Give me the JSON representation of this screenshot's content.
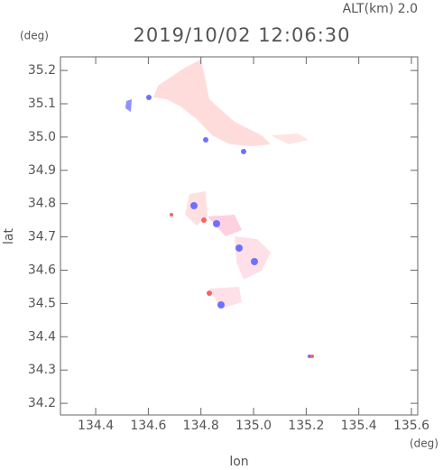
{
  "chart_data": {
    "type": "scatter",
    "title": "2019/10/02 12:06:30",
    "subtitle": "ALT(km)  2.0",
    "x_label": "lon",
    "x_unit": "(deg)",
    "y_label": "lat",
    "y_unit": "(deg)",
    "xlim": [
      134.266,
      135.624
    ],
    "ylim": [
      34.165,
      35.241
    ],
    "xticks": [
      134.4,
      134.6,
      134.8,
      {
        "value": 135,
        "label": "135.0"
      },
      135.2,
      135.4,
      135.6
    ],
    "yticks": [
      {
        "value": 34.2,
        "label": "34.2"
      },
      34.3,
      34.4,
      34.5,
      34.6,
      34.7,
      34.8,
      34.9,
      {
        "value": 35,
        "label": "35.0"
      },
      35.1,
      35.2
    ]
  }
}
